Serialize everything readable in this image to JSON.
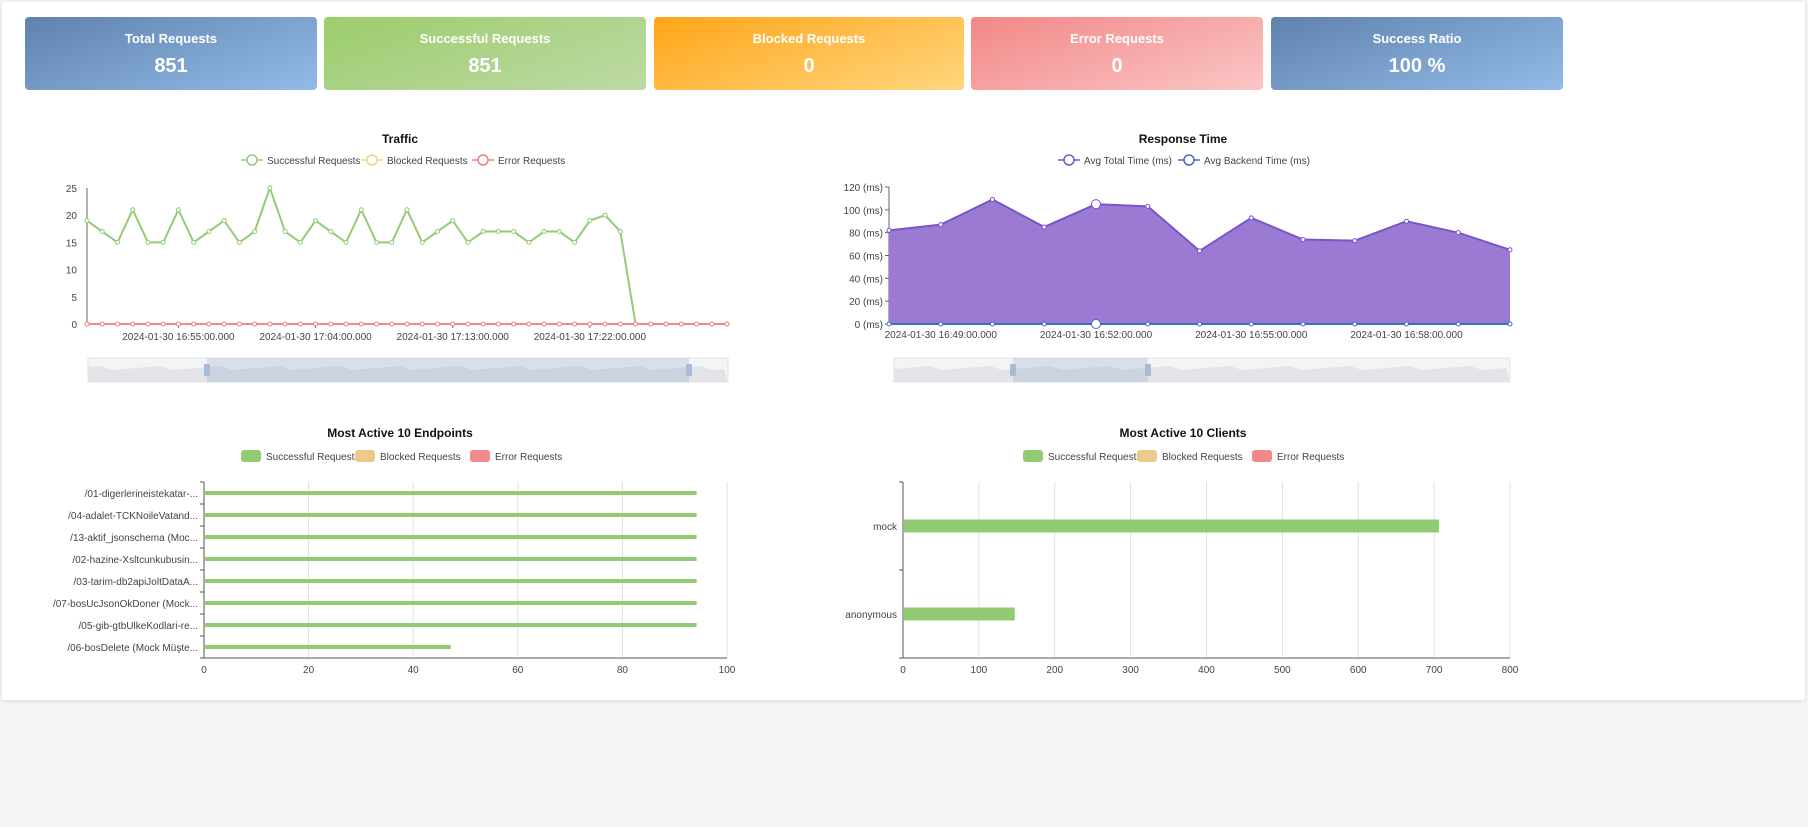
{
  "cards": [
    {
      "title": "Total Requests",
      "value": "851",
      "color": "#6f93c2"
    },
    {
      "title": "Successful Requests",
      "value": "851",
      "color": "#a9d285"
    },
    {
      "title": "Blocked Requests",
      "value": "0",
      "color": "#ffbc45"
    },
    {
      "title": "Error Requests",
      "value": "0",
      "color": "#f6a5a5"
    },
    {
      "title": "Success Ratio",
      "value": "100 %",
      "color": "#6f93c2"
    }
  ],
  "chart_data": [
    {
      "type": "line",
      "title": "Traffic",
      "x": [
        "2024-01-30 16:49:00.000",
        "2024-01-30 16:50:00.000",
        "2024-01-30 16:51:00.000",
        "2024-01-30 16:52:00.000",
        "2024-01-30 16:53:00.000",
        "2024-01-30 16:54:00.000",
        "2024-01-30 16:55:00.000",
        "2024-01-30 16:56:00.000",
        "2024-01-30 16:57:00.000",
        "2024-01-30 16:58:00.000",
        "2024-01-30 16:59:00.000",
        "2024-01-30 17:00:00.000",
        "2024-01-30 17:01:00.000",
        "2024-01-30 17:02:00.000",
        "2024-01-30 17:03:00.000",
        "2024-01-30 17:04:00.000",
        "2024-01-30 17:05:00.000",
        "2024-01-30 17:06:00.000",
        "2024-01-30 17:07:00.000",
        "2024-01-30 17:08:00.000",
        "2024-01-30 17:09:00.000",
        "2024-01-30 17:10:00.000",
        "2024-01-30 17:11:00.000",
        "2024-01-30 17:12:00.000",
        "2024-01-30 17:13:00.000",
        "2024-01-30 17:14:00.000",
        "2024-01-30 17:15:00.000",
        "2024-01-30 17:16:00.000",
        "2024-01-30 17:17:00.000",
        "2024-01-30 17:18:00.000",
        "2024-01-30 17:19:00.000",
        "2024-01-30 17:20:00.000",
        "2024-01-30 17:21:00.000",
        "2024-01-30 17:22:00.000",
        "2024-01-30 17:23:00.000",
        "2024-01-30 17:24:00.000",
        "2024-01-30 17:25:00.000",
        "2024-01-30 17:26:00.000",
        "2024-01-30 17:27:00.000",
        "2024-01-30 17:28:00.000",
        "2024-01-30 17:29:00.000",
        "2024-01-30 17:30:00.000",
        "2024-01-30 17:31:00.000"
      ],
      "x_tick_labels": [
        "2024-01-30 16:55:00.000",
        "2024-01-30 17:04:00.000",
        "2024-01-30 17:13:00.000",
        "2024-01-30 17:22:00.000"
      ],
      "ylim": [
        0,
        25
      ],
      "y_ticks": [
        0,
        5,
        10,
        15,
        20,
        25
      ],
      "legend": "top",
      "series": [
        {
          "name": "Successful Requests",
          "color": "#91cc75",
          "values": [
            19,
            17,
            15,
            21,
            15,
            15,
            21,
            15,
            17,
            19,
            15,
            17,
            25,
            17,
            15,
            19,
            17,
            15,
            21,
            15,
            15,
            21,
            15,
            17,
            19,
            15,
            17,
            17,
            17,
            15,
            17,
            17,
            15,
            19,
            20,
            17,
            0,
            0,
            0,
            0,
            0,
            0,
            0
          ]
        },
        {
          "name": "Blocked Requests",
          "color": "#f5cf8a",
          "values": [
            0,
            0,
            0,
            0,
            0,
            0,
            0,
            0,
            0,
            0,
            0,
            0,
            0,
            0,
            0,
            0,
            0,
            0,
            0,
            0,
            0,
            0,
            0,
            0,
            0,
            0,
            0,
            0,
            0,
            0,
            0,
            0,
            0,
            0,
            0,
            0,
            0,
            0,
            0,
            0,
            0,
            0,
            0
          ]
        },
        {
          "name": "Error Requests",
          "color": "#f08080",
          "values": [
            0,
            0,
            0,
            0,
            0,
            0,
            0,
            0,
            0,
            0,
            0,
            0,
            0,
            0,
            0,
            0,
            0,
            0,
            0,
            0,
            0,
            0,
            0,
            0,
            0,
            0,
            0,
            0,
            0,
            0,
            0,
            0,
            0,
            0,
            0,
            0,
            0,
            0,
            0,
            0,
            0,
            0,
            0
          ]
        }
      ]
    },
    {
      "type": "area",
      "title": "Response Time",
      "x": [
        "2024-01-30 16:48:00.000",
        "2024-01-30 16:49:00.000",
        "2024-01-30 16:50:00.000",
        "2024-01-30 16:51:00.000",
        "2024-01-30 16:52:00.000",
        "2024-01-30 16:53:00.000",
        "2024-01-30 16:54:00.000",
        "2024-01-30 16:55:00.000",
        "2024-01-30 16:56:00.000",
        "2024-01-30 16:57:00.000",
        "2024-01-30 16:58:00.000",
        "2024-01-30 16:59:00.000",
        "2024-01-30 17:00:00.000"
      ],
      "x_tick_labels": [
        "2024-01-30 16:49:00.000",
        "2024-01-30 16:52:00.000",
        "2024-01-30 16:55:00.000",
        "2024-01-30 16:58:00.000"
      ],
      "ylim": [
        0,
        120
      ],
      "y_ticks": [
        "0 (ms)",
        "20 (ms)",
        "40 (ms)",
        "60 (ms)",
        "80 (ms)",
        "100 (ms)",
        "120 (ms)"
      ],
      "legend": "top",
      "series": [
        {
          "name": "Avg Total Time (ms)",
          "color": "#7b55c8",
          "fill": "#9a7ad2",
          "values": [
            82,
            87,
            109,
            85,
            105,
            103,
            64,
            93,
            74,
            73,
            90,
            80,
            65
          ]
        },
        {
          "name": "Avg Backend Time (ms)",
          "color": "#3d6fc0",
          "values": [
            0,
            0,
            0,
            0,
            0,
            0,
            0,
            0,
            0,
            0,
            0,
            0,
            0
          ]
        }
      ]
    },
    {
      "type": "bar",
      "orientation": "horizontal",
      "title": "Most Active 10 Endpoints",
      "categories": [
        "/01-digerlerineistekatar-...",
        "/04-adalet-TCKNoileVatand...",
        "/13-aktif_jsonschema (Moc...",
        "/02-hazine-Xsltcunkubusin...",
        "/03-tarim-db2apiJoltDataA...",
        "/07-bosUcJsonOkDoner (Mock...",
        "/05-gib-gtbUlkeKodlari-re...",
        "/06-bosDelete (Mock Müşte..."
      ],
      "xlim": [
        0,
        100
      ],
      "x_ticks": [
        0,
        20,
        40,
        60,
        80,
        100
      ],
      "grid": true,
      "legend": "top",
      "series": [
        {
          "name": "Successful Requests",
          "color": "#91cc75",
          "values": [
            94,
            94,
            94,
            94,
            94,
            94,
            94,
            47
          ]
        },
        {
          "name": "Blocked Requests",
          "color": "#eac98b",
          "values": [
            0,
            0,
            0,
            0,
            0,
            0,
            0,
            0
          ]
        },
        {
          "name": "Error Requests",
          "color": "#f08a8a",
          "values": [
            0,
            0,
            0,
            0,
            0,
            0,
            0,
            0
          ]
        }
      ]
    },
    {
      "type": "bar",
      "orientation": "horizontal",
      "title": "Most Active 10 Clients",
      "categories": [
        "mock",
        "anonymous"
      ],
      "xlim": [
        0,
        800
      ],
      "x_ticks": [
        0,
        100,
        200,
        300,
        400,
        500,
        600,
        700,
        800
      ],
      "grid": true,
      "legend": "top",
      "series": [
        {
          "name": "Successful Requests",
          "color": "#91cc75",
          "values": [
            705,
            146
          ]
        },
        {
          "name": "Blocked Requests",
          "color": "#eac98b",
          "values": [
            0,
            0
          ]
        },
        {
          "name": "Error Requests",
          "color": "#f08a8a",
          "values": [
            0,
            0
          ]
        }
      ]
    }
  ]
}
